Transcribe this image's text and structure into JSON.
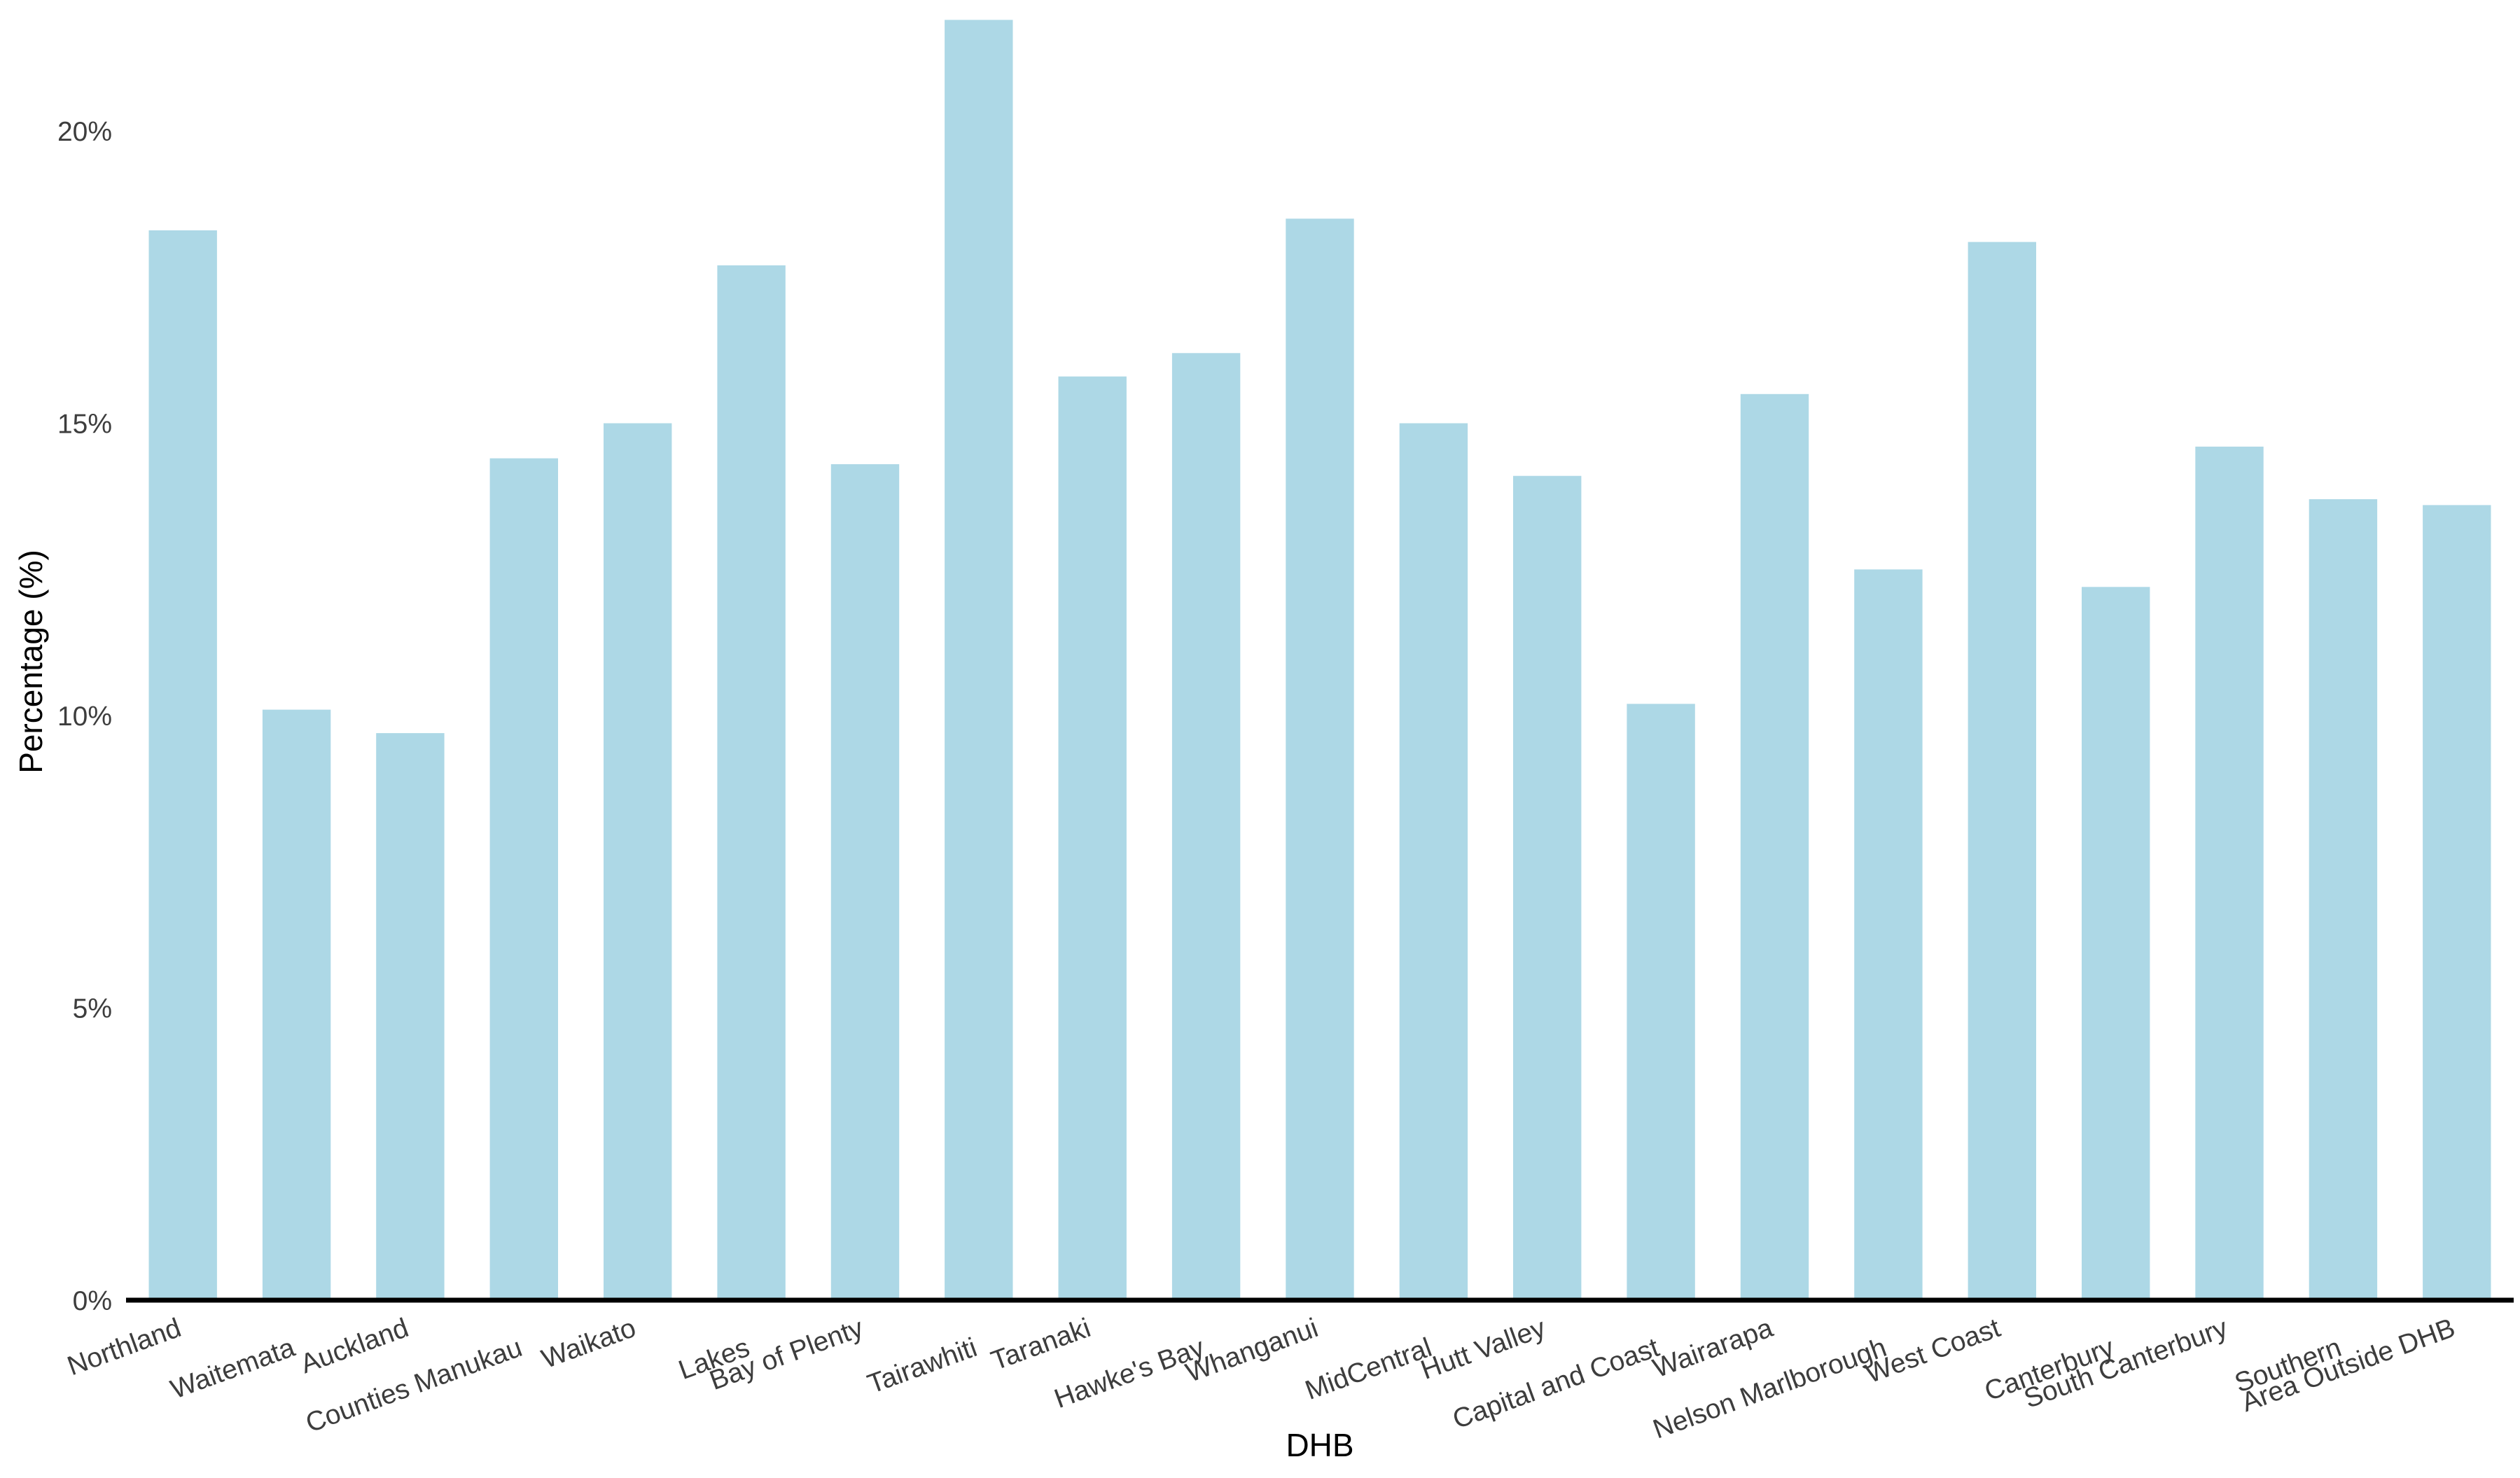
{
  "chart_data": {
    "type": "bar",
    "title": "",
    "xlabel": "DHB",
    "ylabel": "Percentage (%)",
    "ylim": [
      0,
      22
    ],
    "yticks": [
      0,
      5,
      10,
      15,
      20
    ],
    "ytick_labels": [
      "0%",
      "5%",
      "10%",
      "15%",
      "20%"
    ],
    "grid": false,
    "legend": "none",
    "bar_color": "#add8e6",
    "axis_color": "#000000",
    "categories": [
      "Northland",
      "Waitemata",
      "Auckland",
      "Counties Manukau",
      "Waikato",
      "Lakes",
      "Bay of Plenty",
      "Tairawhiti",
      "Taranaki",
      "Hawke's Bay",
      "Whanganui",
      "MidCentral",
      "Hutt Valley",
      "Capital and Coast",
      "Wairarapa",
      "Nelson Marlborough",
      "West Coast",
      "Canterbury",
      "South Canterbury",
      "Southern",
      "Area Outside DHB"
    ],
    "values": [
      18.3,
      10.1,
      9.7,
      14.4,
      15.0,
      17.7,
      14.3,
      21.9,
      15.8,
      16.2,
      18.5,
      15.0,
      14.1,
      10.2,
      15.5,
      12.5,
      18.1,
      12.2,
      14.6,
      13.7,
      13.6
    ]
  }
}
